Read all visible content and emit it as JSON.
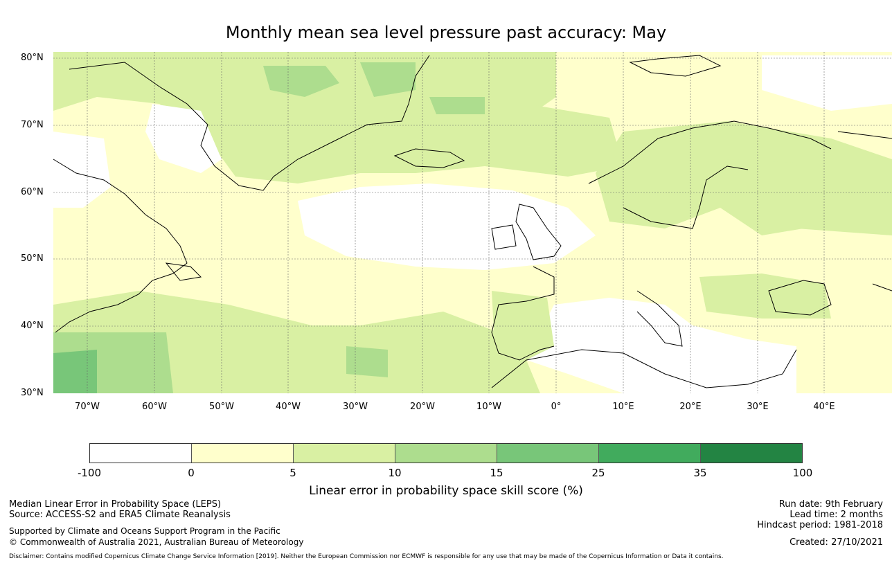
{
  "title": "Monthly mean sea level pressure past accuracy: May",
  "map": {
    "lat_labels": [
      "80°N",
      "70°N",
      "60°N",
      "50°N",
      "40°N",
      "30°N"
    ],
    "lon_labels": [
      "70°W",
      "60°W",
      "50°W",
      "40°W",
      "30°W",
      "20°W",
      "10°W",
      "0°",
      "10°E",
      "20°E",
      "30°E",
      "40°E"
    ],
    "lat_range": [
      30,
      81
    ],
    "lon_range": [
      -75,
      50
    ]
  },
  "colorbar": {
    "ticks": [
      "-100",
      "0",
      "5",
      "10",
      "15",
      "25",
      "35",
      "100"
    ],
    "colors": [
      "#ffffff",
      "#ffffcc",
      "#d9f0a3",
      "#addd8e",
      "#78c679",
      "#41ab5d",
      "#238443"
    ],
    "label": "Linear error in probability space skill score (%)"
  },
  "footer": {
    "left_line1": "Median Linear Error in Probability Space (LEPS)",
    "left_line2": "Source: ACCESS-S2 and ERA5 Climate Reanalysis",
    "left_line3": "Supported by Climate and Oceans Support Program in the Pacific",
    "left_line4": "© Commonwealth of Australia 2021, Australian Bureau of Meteorology",
    "run_date": "Run date: 9th February",
    "lead_time": "Lead time: 2 months",
    "hindcast": "Hindcast period: 1981-2018",
    "created": "Created: 27/10/2021",
    "disclaimer": "Disclaimer: Contains modified Copernicus Climate Change Service Information [2019]. Neither the European Commission nor ECMWF is responsible for any use that may be made of the Copernicus Information or Data it contains."
  }
}
